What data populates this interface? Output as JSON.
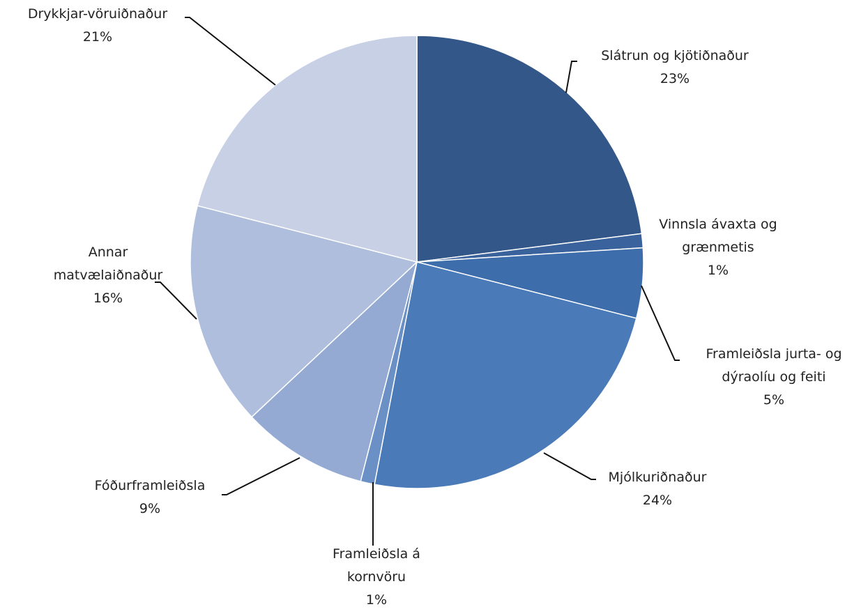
{
  "chart_data": {
    "type": "pie",
    "categories": [
      "Slátrun og kjötiðnaður",
      "Vinnsla ávaxta og grænmetis",
      "Framleiðsla jurta- og dýraolíu og feiti",
      "Mjólkuriðnaður",
      "Framleiðsla á kornvöru",
      "Fóðurframleiðsla",
      "Annar matvælaiðnaður",
      "Drykkjar-vöruiðnaður"
    ],
    "values": [
      23,
      1,
      5,
      24,
      1,
      9,
      16,
      21
    ],
    "value_labels": [
      "23%",
      "1%",
      "5%",
      "24%",
      "1%",
      "9%",
      "16%",
      "21%"
    ],
    "colors": [
      "#34578a",
      "#3a639d",
      "#3e6dab",
      "#4a7bb8",
      "#6b90c6",
      "#94aad3",
      "#aebedc",
      "#c7d0e5"
    ]
  }
}
